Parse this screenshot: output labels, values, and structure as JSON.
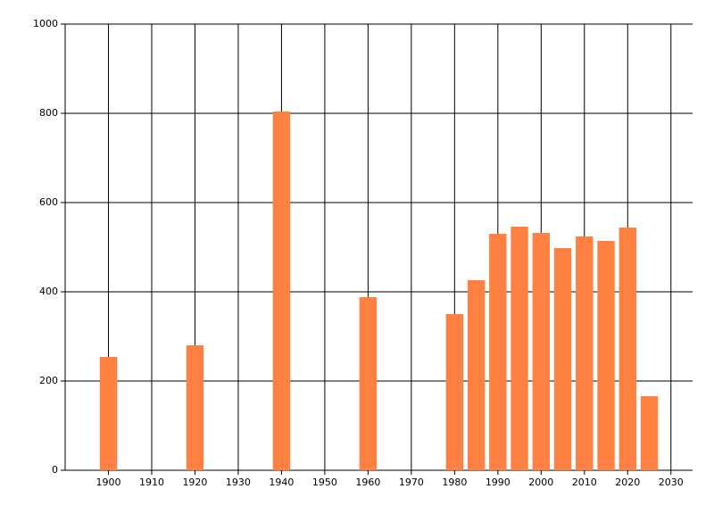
{
  "chart_data": {
    "type": "bar",
    "x": [
      1900,
      1920,
      1940,
      1960,
      1980,
      1985,
      1990,
      1995,
      2000,
      2005,
      2010,
      2015,
      2020,
      2025
    ],
    "values": [
      254,
      280,
      804,
      388,
      350,
      426,
      530,
      546,
      532,
      498,
      524,
      514,
      544,
      166
    ],
    "color": "#ff8040",
    "xlim": [
      1890,
      2035
    ],
    "xticks": [
      1900,
      1910,
      1920,
      1930,
      1940,
      1950,
      1960,
      1970,
      1980,
      1990,
      2000,
      2010,
      2020,
      2030
    ],
    "ylim": [
      0,
      1000
    ],
    "yticks": [
      0,
      200,
      400,
      600,
      800,
      1000
    ],
    "grid": true
  }
}
